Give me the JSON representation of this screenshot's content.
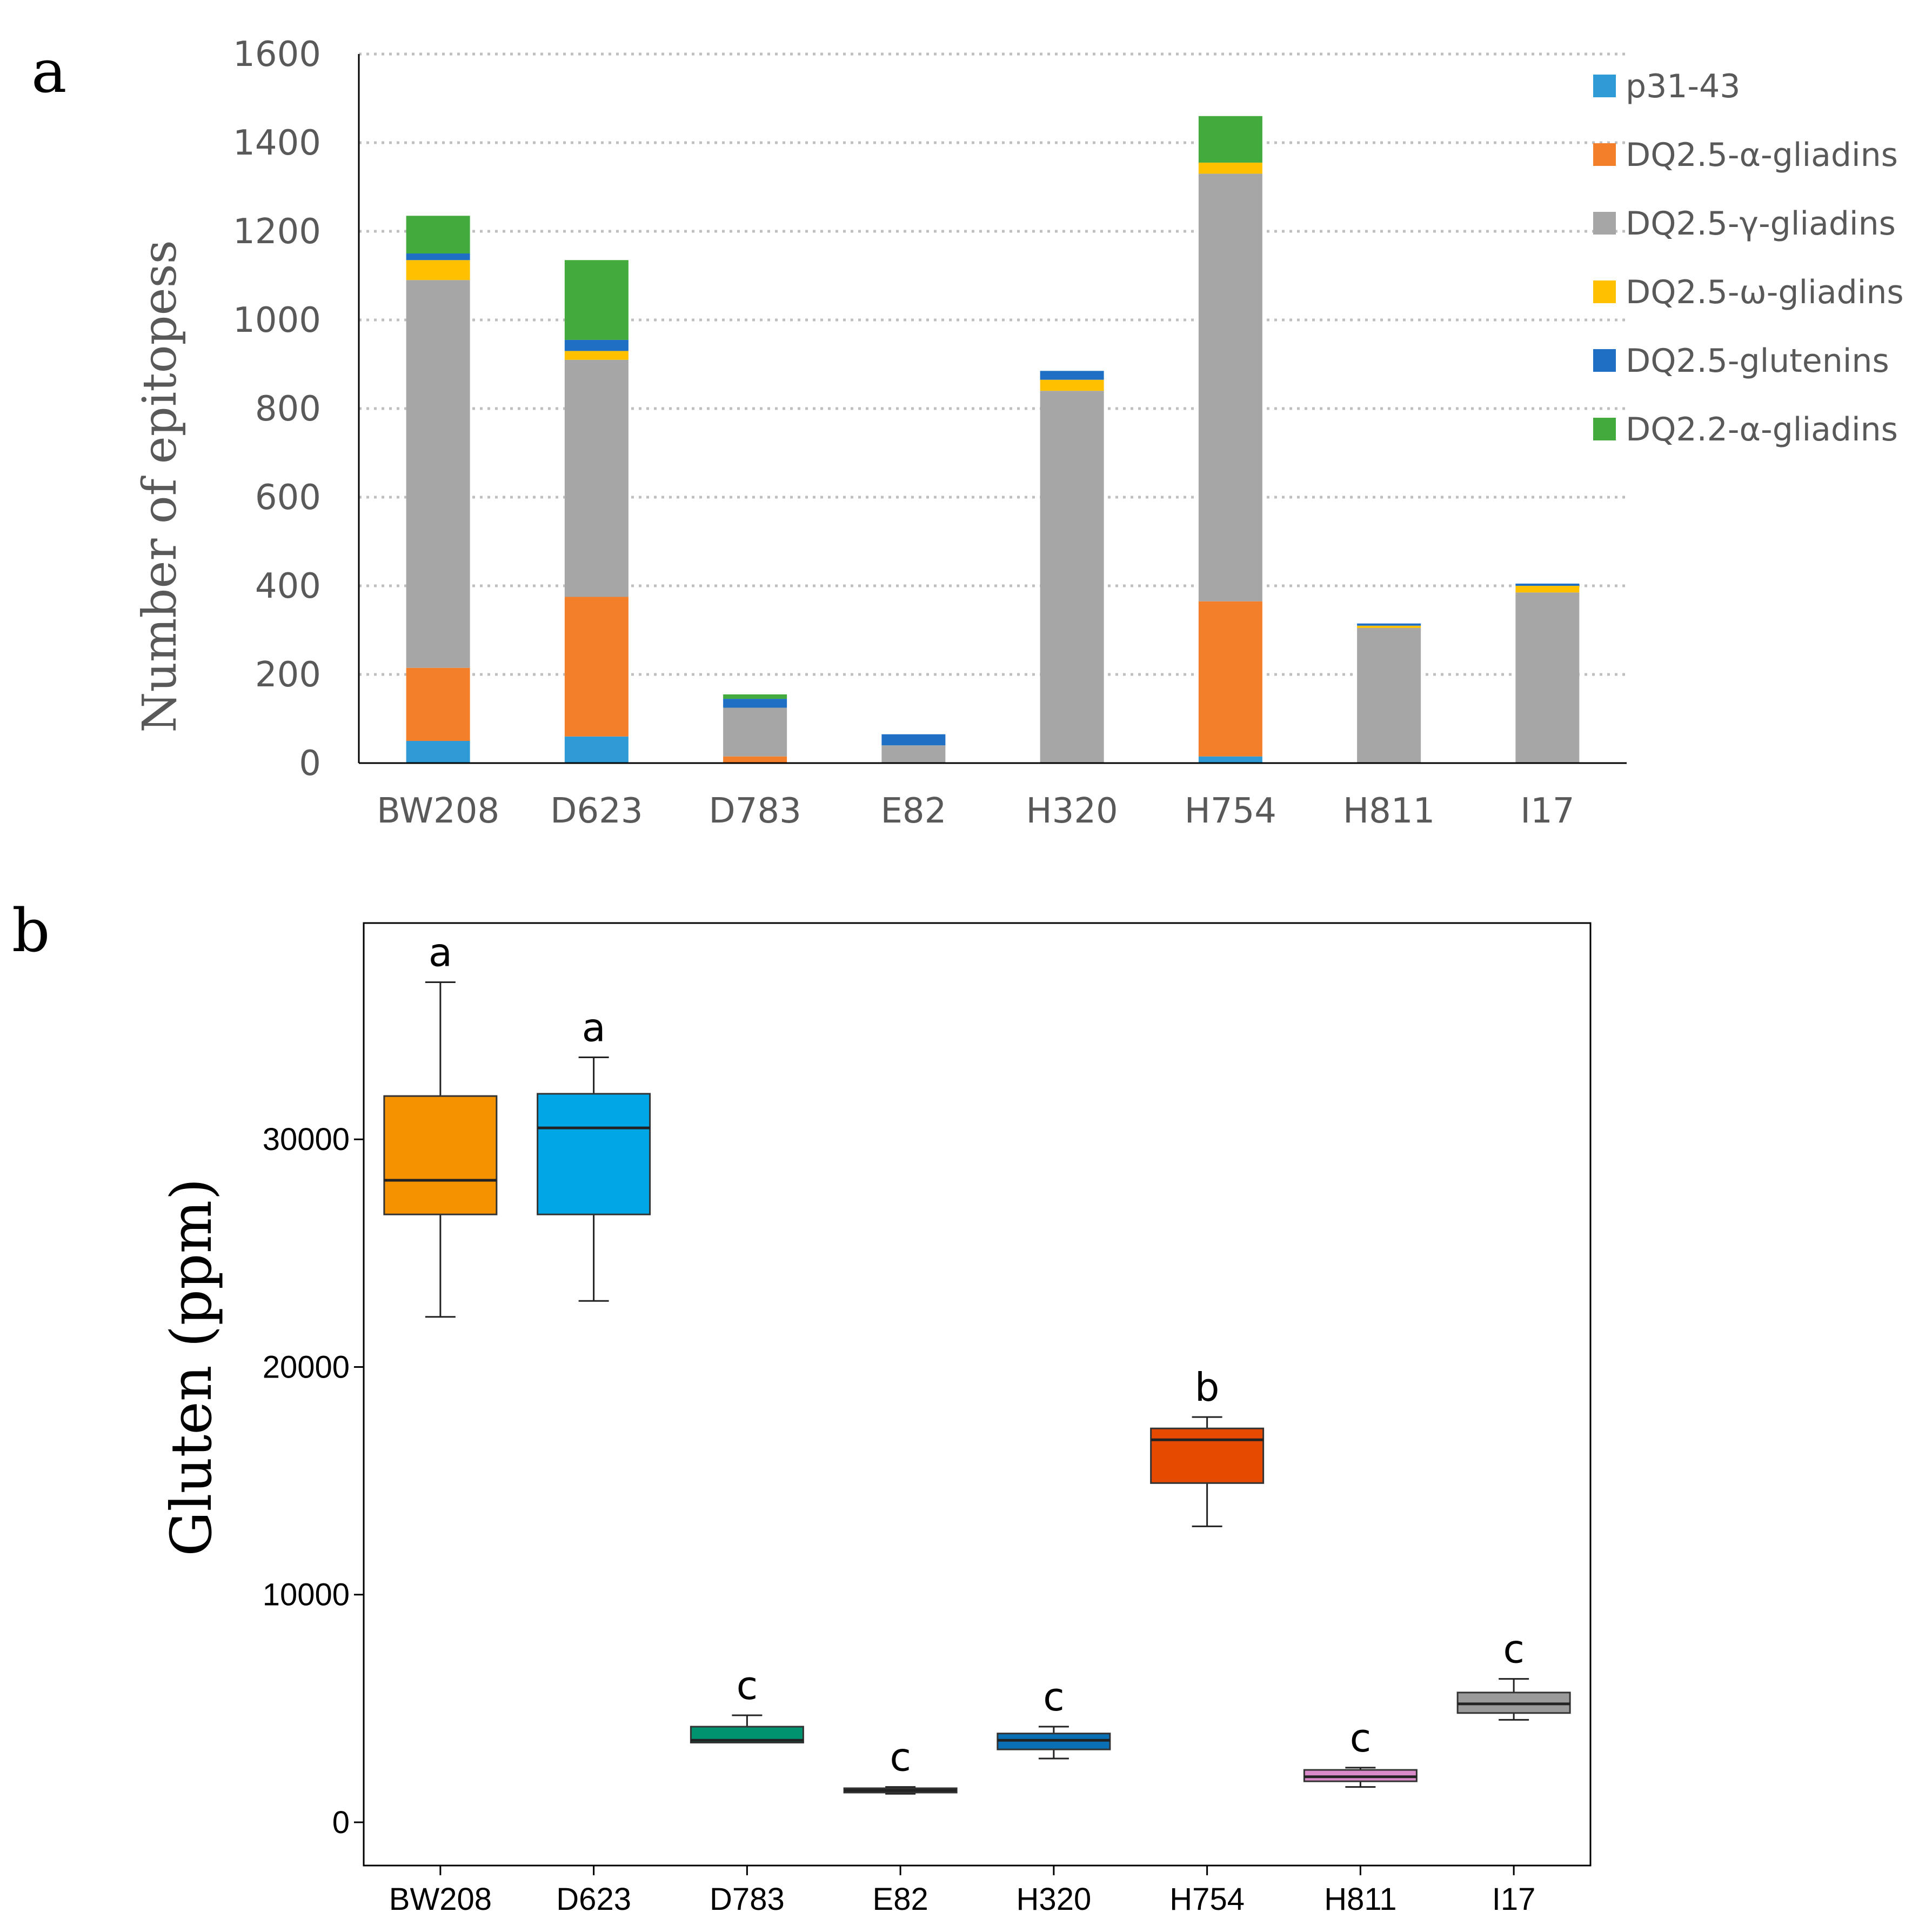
{
  "panels": {
    "a_letter": "a",
    "b_letter": "b"
  },
  "chart_data": [
    {
      "type": "bar",
      "stacked": true,
      "categories": [
        "BW208",
        "D623",
        "D783",
        "E82",
        "H320",
        "H754",
        "H811",
        "I17"
      ],
      "ylabel": "Number of epitopess",
      "ylim": [
        0,
        1600
      ],
      "yticks": [
        0,
        200,
        400,
        600,
        800,
        1000,
        1200,
        1400,
        1600
      ],
      "grid": "horizontal-dotted",
      "legend_position": "right",
      "series": [
        {
          "name": "p31-43",
          "color": "#2e9bd6",
          "values": [
            50,
            60,
            0,
            0,
            0,
            15,
            0,
            0
          ]
        },
        {
          "name": "DQ2.5-α-gliadins",
          "color": "#f47f2b",
          "values": [
            165,
            315,
            15,
            0,
            0,
            350,
            0,
            0
          ]
        },
        {
          "name": "DQ2.5-γ-gliadins",
          "color": "#a6a6a6",
          "values": [
            875,
            535,
            110,
            40,
            840,
            965,
            305,
            385
          ]
        },
        {
          "name": "DQ2.5-ω-gliadins",
          "color": "#ffc000",
          "values": [
            45,
            20,
            0,
            0,
            25,
            25,
            5,
            15
          ]
        },
        {
          "name": "DQ2.5-glutenins",
          "color": "#1f6fc5",
          "values": [
            15,
            25,
            20,
            25,
            20,
            0,
            5,
            5
          ]
        },
        {
          "name": "DQ2.2-α-gliadins",
          "color": "#43aa3d",
          "values": [
            85,
            180,
            10,
            0,
            0,
            105,
            0,
            0
          ]
        }
      ]
    },
    {
      "type": "box",
      "categories": [
        "BW208",
        "D623",
        "D783",
        "E82",
        "H320",
        "H754",
        "H811",
        "I17"
      ],
      "ylabel": "Gluten (ppm)",
      "ylim": [
        -1900,
        39500
      ],
      "yticks": [
        0,
        10000,
        20000,
        30000
      ],
      "ytick_labels": [
        "0",
        "10000",
        "20000",
        "30000"
      ],
      "boxes": [
        {
          "color": "#f59200",
          "whisker_low": 22200,
          "q1": 26700,
          "median": 28200,
          "q3": 31900,
          "whisker_high": 36900,
          "letter": "a"
        },
        {
          "color": "#00a6e6",
          "whisker_low": 22900,
          "q1": 26700,
          "median": 30500,
          "q3": 32000,
          "whisker_high": 33600,
          "letter": "a"
        },
        {
          "color": "#00936f",
          "whisker_low": 3500,
          "q1": 3500,
          "median": 3600,
          "q3": 4200,
          "whisker_high": 4700,
          "letter": "c"
        },
        {
          "color": "#f0e442",
          "whisker_low": 1250,
          "q1": 1350,
          "median": 1400,
          "q3": 1450,
          "whisker_high": 1550,
          "letter": "c"
        },
        {
          "color": "#0a6fb4",
          "whisker_low": 2800,
          "q1": 3200,
          "median": 3600,
          "q3": 3900,
          "whisker_high": 4200,
          "letter": "c"
        },
        {
          "color": "#e64a00",
          "whisker_low": 13000,
          "q1": 14900,
          "median": 16800,
          "q3": 17300,
          "whisker_high": 17800,
          "letter": "b"
        },
        {
          "color": "#d98ac9",
          "whisker_low": 1550,
          "q1": 1800,
          "median": 2000,
          "q3": 2300,
          "whisker_high": 2400,
          "letter": "c"
        },
        {
          "color": "#9a9a9a",
          "whisker_low": 4500,
          "q1": 4800,
          "median": 5200,
          "q3": 5700,
          "whisker_high": 6300,
          "letter": "c"
        }
      ]
    }
  ]
}
